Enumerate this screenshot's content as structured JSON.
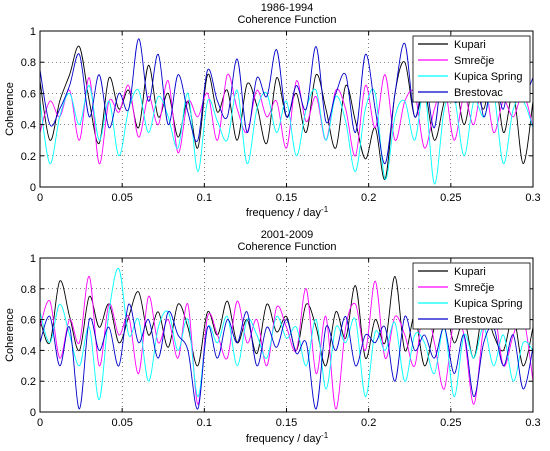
{
  "chart_data": [
    {
      "type": "line",
      "title": "1986-1994",
      "subtitle": "Coherence Function",
      "xlabel": "frequency / day",
      "xlabel_sup": "-1",
      "ylabel": "Coherence",
      "xlim": [
        0,
        0.3
      ],
      "ylim": [
        0,
        1
      ],
      "xticks": [
        "0",
        "0.05",
        "0.1",
        "0.15",
        "0.2",
        "0.25",
        "0.3"
      ],
      "yticks": [
        "0",
        "0.2",
        "0.4",
        "0.6",
        "0.8",
        "1"
      ],
      "grid": true,
      "legend_position": "top-right",
      "x": [
        0.0,
        0.006,
        0.012,
        0.018,
        0.024,
        0.03,
        0.036,
        0.042,
        0.048,
        0.054,
        0.06,
        0.066,
        0.072,
        0.078,
        0.084,
        0.09,
        0.096,
        0.102,
        0.108,
        0.114,
        0.12,
        0.126,
        0.132,
        0.138,
        0.144,
        0.15,
        0.156,
        0.162,
        0.168,
        0.174,
        0.18,
        0.186,
        0.192,
        0.198,
        0.204,
        0.21,
        0.216,
        0.222,
        0.228,
        0.234,
        0.24,
        0.246,
        0.252,
        0.258,
        0.264,
        0.27,
        0.276,
        0.282,
        0.288,
        0.294,
        0.3
      ],
      "series": [
        {
          "name": "Kupari",
          "color": "#000000",
          "values": [
            0.68,
            0.3,
            0.55,
            0.72,
            0.9,
            0.55,
            0.28,
            0.7,
            0.5,
            0.62,
            0.38,
            0.78,
            0.45,
            0.6,
            0.32,
            0.55,
            0.25,
            0.72,
            0.48,
            0.62,
            0.3,
            0.66,
            0.52,
            0.28,
            0.7,
            0.45,
            0.6,
            0.35,
            0.72,
            0.5,
            0.25,
            0.65,
            0.42,
            0.18,
            0.38,
            0.05,
            0.6,
            0.8,
            0.45,
            0.62,
            0.3,
            0.55,
            0.72,
            0.4,
            0.68,
            0.5,
            0.78,
            0.35,
            0.6,
            0.15,
            0.55
          ]
        },
        {
          "name": "Smrečje",
          "color": "#ff00ff",
          "values": [
            0.35,
            0.55,
            0.45,
            0.62,
            0.3,
            0.7,
            0.15,
            0.55,
            0.48,
            0.65,
            0.32,
            0.58,
            0.4,
            0.68,
            0.22,
            0.55,
            0.45,
            0.6,
            0.3,
            0.72,
            0.5,
            0.35,
            0.62,
            0.45,
            0.55,
            0.25,
            0.68,
            0.42,
            0.58,
            0.3,
            0.62,
            0.5,
            0.2,
            0.65,
            0.38,
            0.72,
            0.3,
            0.55,
            0.6,
            0.25,
            0.5,
            0.65,
            0.3,
            0.58,
            0.4,
            0.7,
            0.35,
            0.55,
            0.45,
            0.6,
            0.38
          ]
        },
        {
          "name": "Kupica Spring",
          "color": "#00ffff",
          "values": [
            0.55,
            0.15,
            0.45,
            0.6,
            0.4,
            0.65,
            0.3,
            0.55,
            0.2,
            0.5,
            0.62,
            0.35,
            0.58,
            0.45,
            0.25,
            0.6,
            0.1,
            0.55,
            0.42,
            0.3,
            0.62,
            0.15,
            0.5,
            0.6,
            0.35,
            0.55,
            0.2,
            0.5,
            0.62,
            0.3,
            0.58,
            0.42,
            0.1,
            0.5,
            0.6,
            0.05,
            0.45,
            0.55,
            0.3,
            0.62,
            0.02,
            0.5,
            0.58,
            0.2,
            0.55,
            0.45,
            0.6,
            0.15,
            0.5,
            0.55,
            0.38
          ]
        },
        {
          "name": "Brestovac",
          "color": "#0000cc",
          "values": [
            0.75,
            0.4,
            0.5,
            0.65,
            0.85,
            0.45,
            0.72,
            0.38,
            0.6,
            0.5,
            0.95,
            0.55,
            0.85,
            0.4,
            0.72,
            0.48,
            0.3,
            0.75,
            0.55,
            0.45,
            0.82,
            0.35,
            0.7,
            0.58,
            0.88,
            0.45,
            0.65,
            0.5,
            0.9,
            0.42,
            0.6,
            0.72,
            0.35,
            0.85,
            0.5,
            0.15,
            0.6,
            0.92,
            0.45,
            0.7,
            0.38,
            0.85,
            0.55,
            0.65,
            0.9,
            0.45,
            0.75,
            0.5,
            0.88,
            0.6,
            0.7
          ]
        }
      ]
    },
    {
      "type": "line",
      "title": "2001-2009",
      "subtitle": "Coherence Function",
      "xlabel": "frequency / day",
      "xlabel_sup": "-1",
      "ylabel": "Coherence",
      "xlim": [
        0,
        0.3
      ],
      "ylim": [
        0,
        1
      ],
      "xticks": [
        "0",
        "0.05",
        "0.1",
        "0.15",
        "0.2",
        "0.25",
        "0.3"
      ],
      "yticks": [
        "0",
        "0.2",
        "0.4",
        "0.6",
        "0.8",
        "1"
      ],
      "grid": true,
      "legend_position": "top-right",
      "x": [
        0.0,
        0.006,
        0.012,
        0.018,
        0.024,
        0.03,
        0.036,
        0.042,
        0.048,
        0.054,
        0.06,
        0.066,
        0.072,
        0.078,
        0.084,
        0.09,
        0.096,
        0.102,
        0.108,
        0.114,
        0.12,
        0.126,
        0.132,
        0.138,
        0.144,
        0.15,
        0.156,
        0.162,
        0.168,
        0.174,
        0.18,
        0.186,
        0.192,
        0.198,
        0.204,
        0.21,
        0.216,
        0.222,
        0.228,
        0.234,
        0.24,
        0.246,
        0.252,
        0.258,
        0.264,
        0.27,
        0.276,
        0.282,
        0.288,
        0.294,
        0.3
      ],
      "series": [
        {
          "name": "Kupari",
          "color": "#000000",
          "values": [
            0.6,
            0.45,
            0.85,
            0.62,
            0.4,
            0.75,
            0.55,
            0.7,
            0.45,
            0.62,
            0.78,
            0.5,
            0.65,
            0.42,
            0.7,
            0.55,
            0.3,
            0.65,
            0.5,
            0.72,
            0.45,
            0.6,
            0.38,
            0.7,
            0.52,
            0.62,
            0.4,
            0.7,
            0.55,
            0.3,
            0.65,
            0.48,
            0.82,
            0.35,
            0.6,
            0.45,
            0.88,
            0.4,
            0.62,
            0.3,
            0.55,
            0.7,
            0.45,
            0.6,
            0.35,
            0.68,
            0.5,
            0.4,
            0.62,
            0.3,
            0.55
          ]
        },
        {
          "name": "Smrečje",
          "color": "#ff00ff",
          "values": [
            0.55,
            0.72,
            0.35,
            0.6,
            0.45,
            0.88,
            0.3,
            0.7,
            0.5,
            0.62,
            0.25,
            0.75,
            0.45,
            0.6,
            0.35,
            0.7,
            0.05,
            0.62,
            0.5,
            0.35,
            0.72,
            0.45,
            0.6,
            0.3,
            0.68,
            0.55,
            0.4,
            0.8,
            0.25,
            0.62,
            0.02,
            0.55,
            0.7,
            0.4,
            0.85,
            0.35,
            0.62,
            0.5,
            0.3,
            0.72,
            0.45,
            0.15,
            0.6,
            0.5,
            0.05,
            0.55,
            0.68,
            0.3,
            0.5,
            0.62,
            0.2
          ]
        },
        {
          "name": "Kupica Spring",
          "color": "#00ffff",
          "values": [
            0.65,
            0.45,
            0.7,
            0.5,
            0.3,
            0.55,
            0.08,
            0.65,
            0.93,
            0.5,
            0.6,
            0.2,
            0.55,
            0.65,
            0.4,
            0.6,
            0.1,
            0.55,
            0.45,
            0.62,
            0.3,
            0.6,
            0.5,
            0.35,
            0.62,
            0.48,
            0.55,
            0.3,
            0.6,
            0.15,
            0.55,
            0.45,
            0.6,
            0.1,
            0.52,
            0.4,
            0.58,
            0.2,
            0.5,
            0.45,
            0.25,
            0.55,
            0.1,
            0.5,
            0.35,
            0.55,
            0.3,
            0.5,
            0.2,
            0.45,
            0.4
          ]
        },
        {
          "name": "Brestovac",
          "color": "#0000cc",
          "values": [
            0.45,
            0.62,
            0.3,
            0.55,
            0.02,
            0.6,
            0.4,
            0.55,
            0.3,
            0.7,
            0.45,
            0.6,
            0.35,
            0.65,
            0.5,
            0.4,
            0.02,
            0.55,
            0.35,
            0.6,
            0.45,
            0.65,
            0.3,
            0.55,
            0.42,
            0.6,
            0.38,
            0.45,
            0.02,
            0.55,
            0.4,
            0.62,
            0.3,
            0.5,
            0.45,
            0.55,
            0.2,
            0.62,
            0.4,
            0.5,
            0.35,
            0.55,
            0.25,
            0.5,
            0.1,
            0.45,
            0.55,
            0.3,
            0.5,
            0.15,
            0.42
          ]
        }
      ]
    }
  ]
}
